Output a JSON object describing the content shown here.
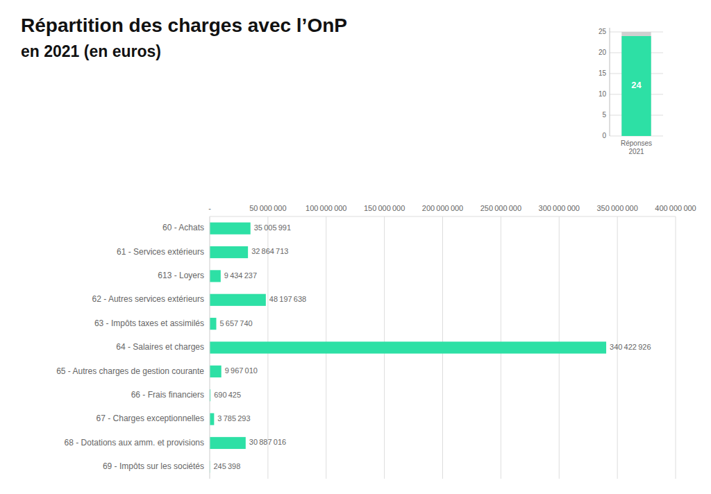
{
  "chart_data": [
    {
      "type": "bar",
      "orientation": "horizontal",
      "title": "Répartition des charges avec l’OnP",
      "subtitle": "en 2021 (en euros)",
      "categories": [
        "60 - Achats",
        "61 - Services extérieurs",
        "613 - Loyers",
        "62 - Autres services extérieurs",
        "63 - Impôts taxes et assimilés",
        "64 - Salaires et charges",
        "65 - Autres charges de gestion courante",
        "66 - Frais financiers",
        "67 - Charges exceptionnelles",
        "68 - Dotations aux amm. et provisions",
        "69 - Impôts sur les sociétés"
      ],
      "values": [
        35005991,
        32864713,
        9434237,
        48197638,
        5657740,
        340422926,
        9967010,
        690425,
        3785293,
        30887016,
        245398
      ],
      "value_labels": [
        "35 005 991",
        "32 864 713",
        "9 434 237",
        "48 197 638",
        "5 657 740",
        "340 422 926",
        "9 967 010",
        "690 425",
        "3 785 293",
        "30 887 016",
        "245 398"
      ],
      "color": "#2de0a5",
      "xlim": [
        0,
        400000000
      ],
      "xticks": [
        {
          "value": 0,
          "label": "-"
        },
        {
          "value": 50000000,
          "label": "50 000 000"
        },
        {
          "value": 100000000,
          "label": "100 000 000"
        },
        {
          "value": 150000000,
          "label": "150 000 000"
        },
        {
          "value": 200000000,
          "label": "200 000 000"
        },
        {
          "value": 250000000,
          "label": "250 000 000"
        },
        {
          "value": 300000000,
          "label": "300 000 000"
        },
        {
          "value": 350000000,
          "label": "350 000 000"
        },
        {
          "value": 400000000,
          "label": "400 000 000"
        }
      ],
      "grid": true,
      "data_labels": true
    },
    {
      "type": "bar",
      "categories": [
        "Réponses\n2021"
      ],
      "series": [
        {
          "color": "#d0d0d0",
          "values": [
            25
          ]
        },
        {
          "color": "#2de0a5",
          "values": [
            24
          ],
          "data_labels": true
        }
      ],
      "ylim": [
        0,
        26
      ],
      "yticks": [
        0,
        5,
        10,
        15,
        20,
        25
      ],
      "grid": true
    }
  ]
}
